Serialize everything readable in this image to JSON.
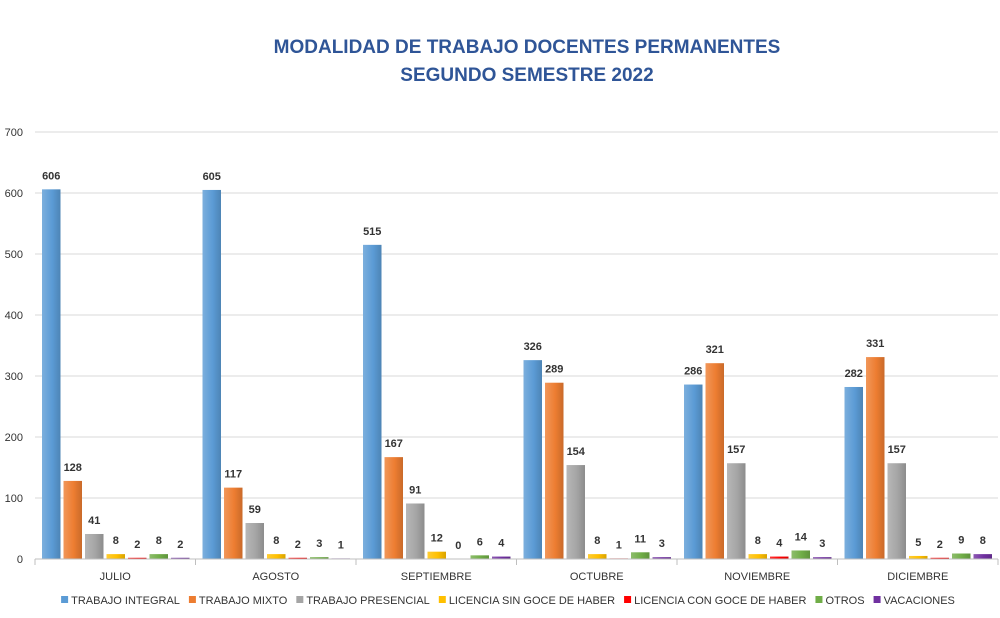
{
  "chart_data": {
    "type": "bar",
    "title": "MODALIDAD DE TRABAJO DOCENTES PERMANENTES",
    "subtitle": "SEGUNDO SEMESTRE 2022",
    "xlabel": "",
    "ylabel": "",
    "ylim": [
      0,
      700
    ],
    "yticks": [
      0,
      100,
      200,
      300,
      400,
      500,
      600,
      700
    ],
    "grid": true,
    "legend_position": "bottom",
    "categories": [
      "JULIO",
      "AGOSTO",
      "SEPTIEMBRE",
      "OCTUBRE",
      "NOVIEMBRE",
      "DICIEMBRE"
    ],
    "series": [
      {
        "name": "TRABAJO INTEGRAL",
        "color": "#5B9BD5",
        "values": [
          606,
          605,
          515,
          326,
          286,
          282
        ],
        "labels": [
          "606",
          "605",
          "515",
          "326",
          "286",
          "282"
        ]
      },
      {
        "name": "TRABAJO MIXTO",
        "color": "#ED7D31",
        "values": [
          128,
          117,
          167,
          289,
          321,
          331
        ],
        "labels": [
          "128",
          "117",
          "167",
          "289",
          "321",
          "331"
        ]
      },
      {
        "name": "TRABAJO PRESENCIAL",
        "color": "#A5A5A5",
        "values": [
          41,
          59,
          91,
          154,
          157,
          157
        ],
        "labels": [
          "41",
          "59",
          "91",
          "154",
          "157",
          "157"
        ]
      },
      {
        "name": "LICENCIA SIN GOCE DE HABER",
        "color": "#FFC000",
        "values": [
          8,
          8,
          12,
          8,
          8,
          5
        ],
        "labels": [
          "8",
          "8",
          "12",
          "8",
          "8",
          "5"
        ]
      },
      {
        "name": "LICENCIA CON GOCE DE HABER",
        "color": "#FF0000",
        "values": [
          2,
          2,
          0,
          1,
          4,
          2
        ],
        "labels": [
          "2",
          "2",
          "0",
          "1",
          "4",
          "2"
        ]
      },
      {
        "name": "OTROS",
        "color": "#70AD47",
        "values": [
          8,
          3,
          6,
          11,
          14,
          9
        ],
        "labels": [
          "8",
          "3",
          "6",
          "11",
          "14",
          "9"
        ]
      },
      {
        "name": "VACACIONES",
        "color": "#7030A0",
        "values": [
          2,
          1,
          4,
          3,
          3,
          8
        ],
        "labels": [
          "2",
          "1",
          "4",
          "3",
          "3",
          "8"
        ]
      }
    ]
  }
}
